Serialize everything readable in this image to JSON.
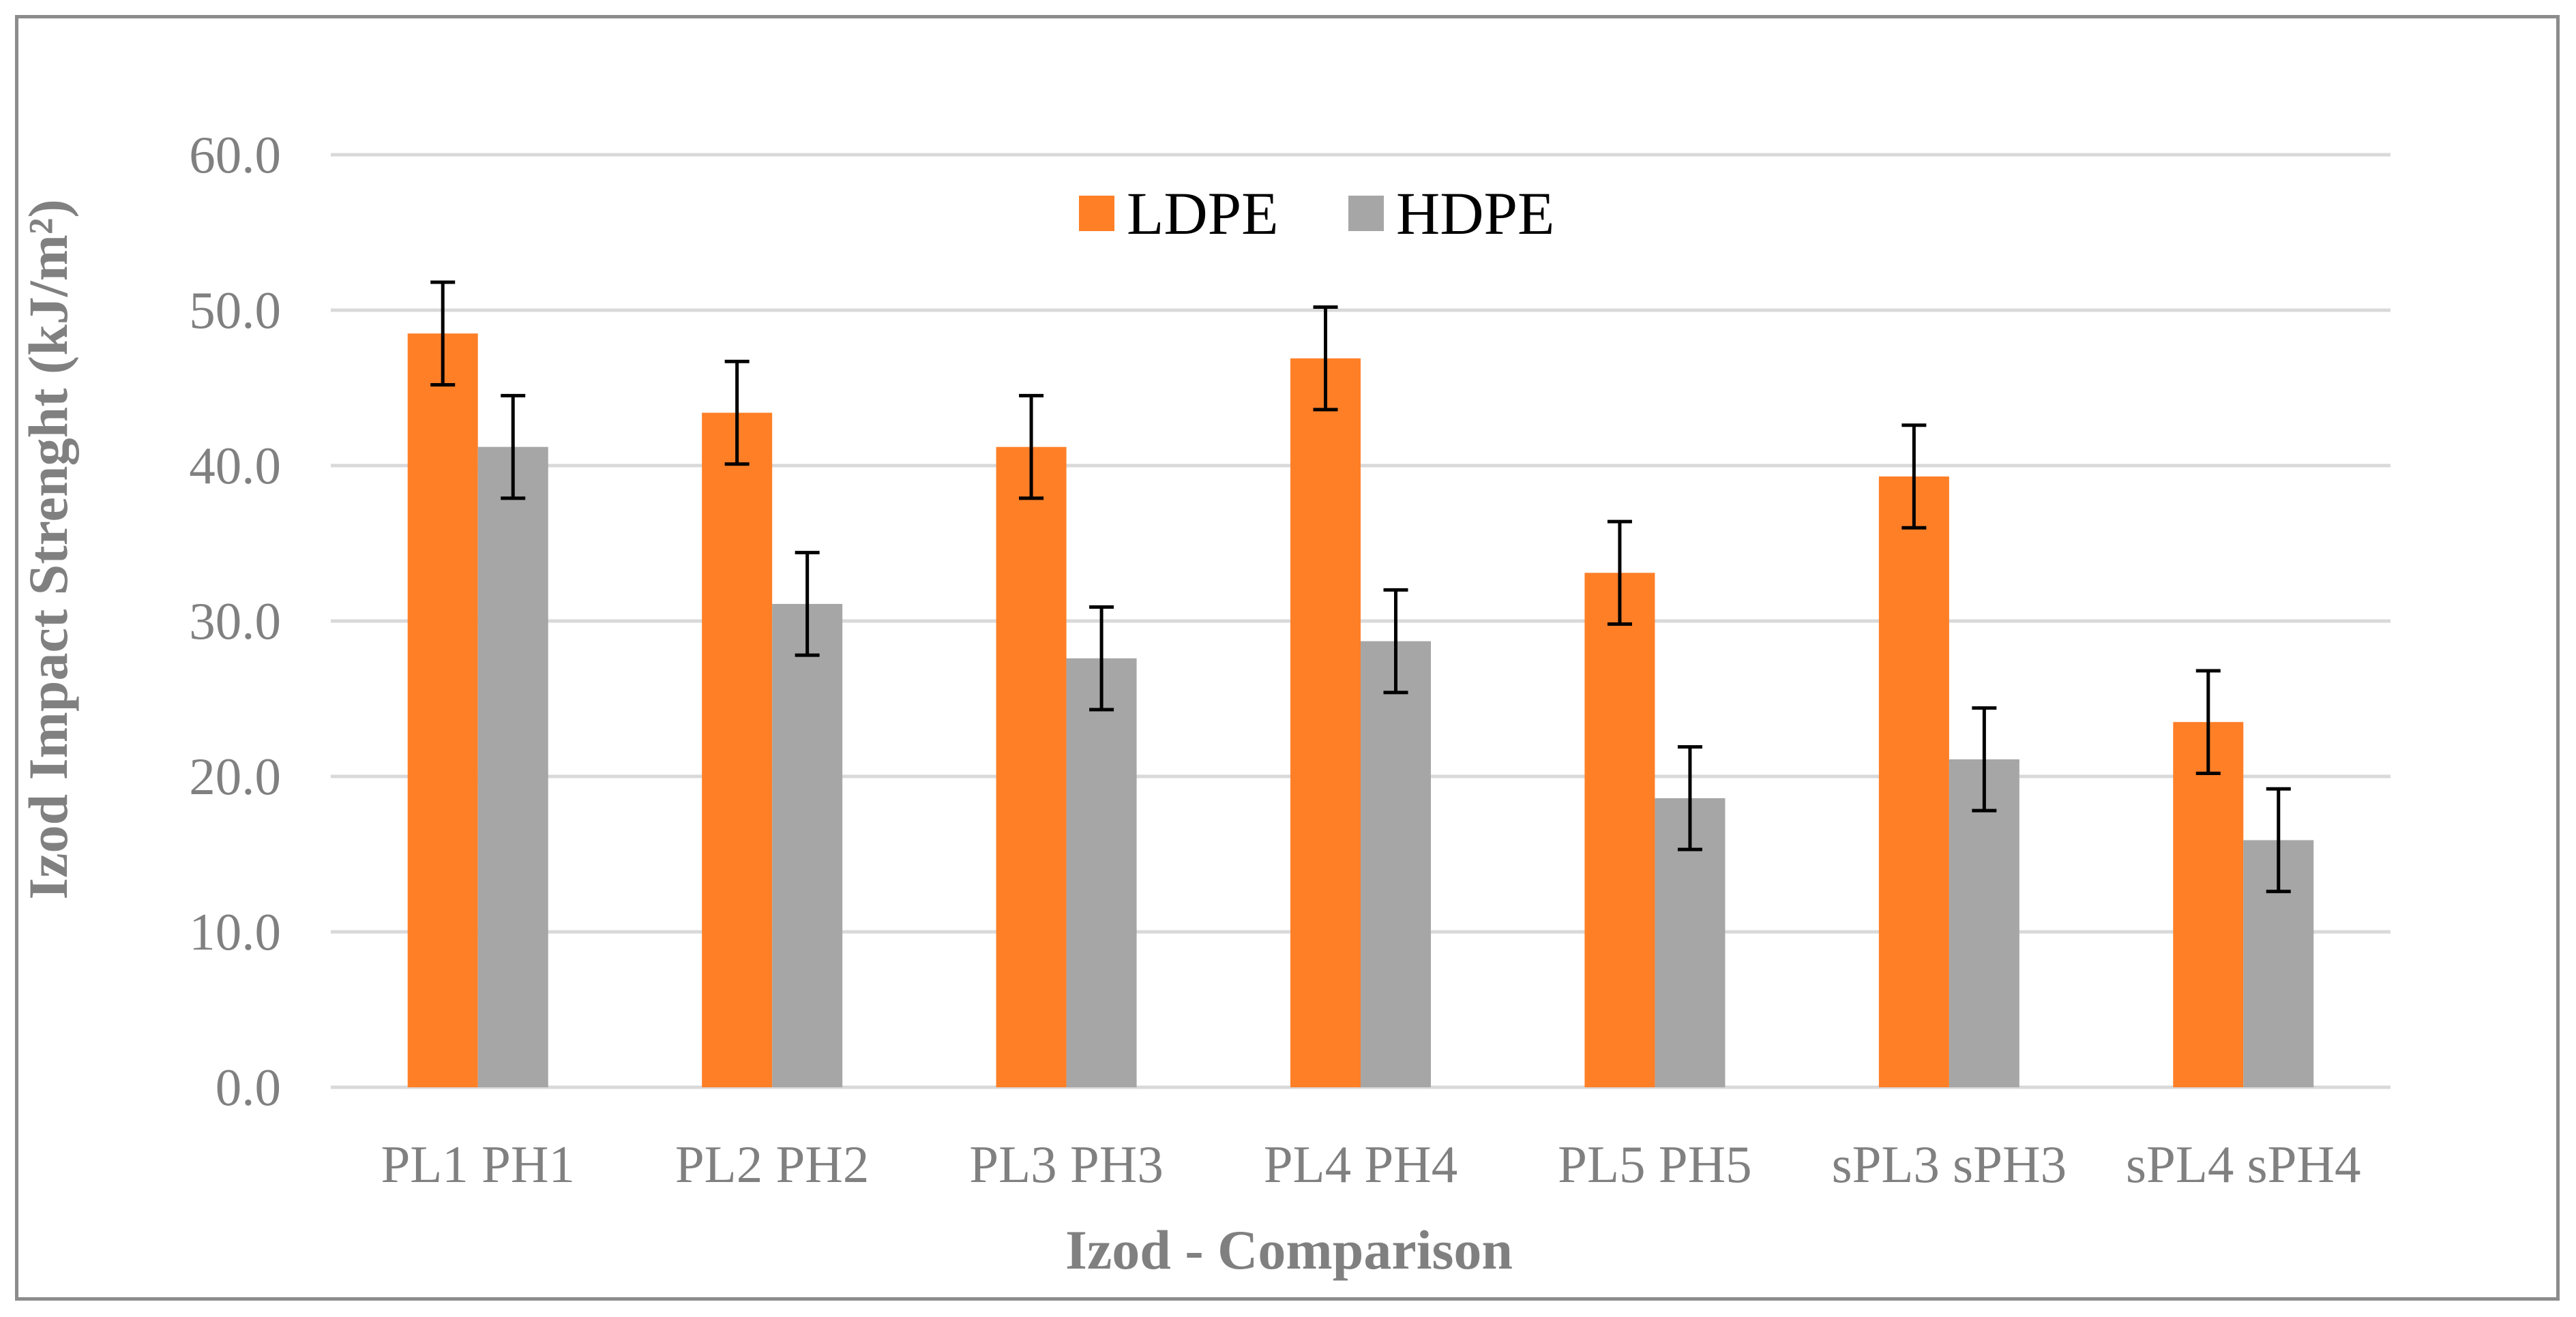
{
  "chart_data": {
    "type": "bar",
    "title": "",
    "xlabel": "Izod - Comparison",
    "ylabel": "Izod Impact Strenght (kJ/m²)",
    "ylim": [
      0,
      60
    ],
    "yticks": [
      "0.0",
      "10.0",
      "20.0",
      "30.0",
      "40.0",
      "50.0",
      "60.0"
    ],
    "yticks_values": [
      0,
      10,
      20,
      30,
      40,
      50,
      60
    ],
    "grid": true,
    "legend_position": "top-center",
    "categories": [
      "PL1 PH1",
      "PL2 PH2",
      "PL3 PH3",
      "PL4 PH4",
      "PL5 PH5",
      "sPL3 sPH3",
      "sPL4 sPH4"
    ],
    "series": [
      {
        "name": "LDPE",
        "color": "#FF7F27",
        "values": [
          48.5,
          43.4,
          41.2,
          46.9,
          33.1,
          39.3,
          23.5
        ],
        "error": [
          3.3,
          3.3,
          3.3,
          3.3,
          3.3,
          3.3,
          3.3
        ]
      },
      {
        "name": "HDPE",
        "color": "#A6A6A6",
        "values": [
          41.2,
          31.1,
          27.6,
          28.7,
          18.6,
          21.1,
          15.9
        ],
        "error": [
          3.3,
          3.3,
          3.3,
          3.3,
          3.3,
          3.3,
          3.3
        ]
      }
    ],
    "colors": {
      "grid": "#D9D9D9",
      "axis": "#D9D9D9",
      "error_bar": "#000000",
      "text": "#808080"
    }
  }
}
